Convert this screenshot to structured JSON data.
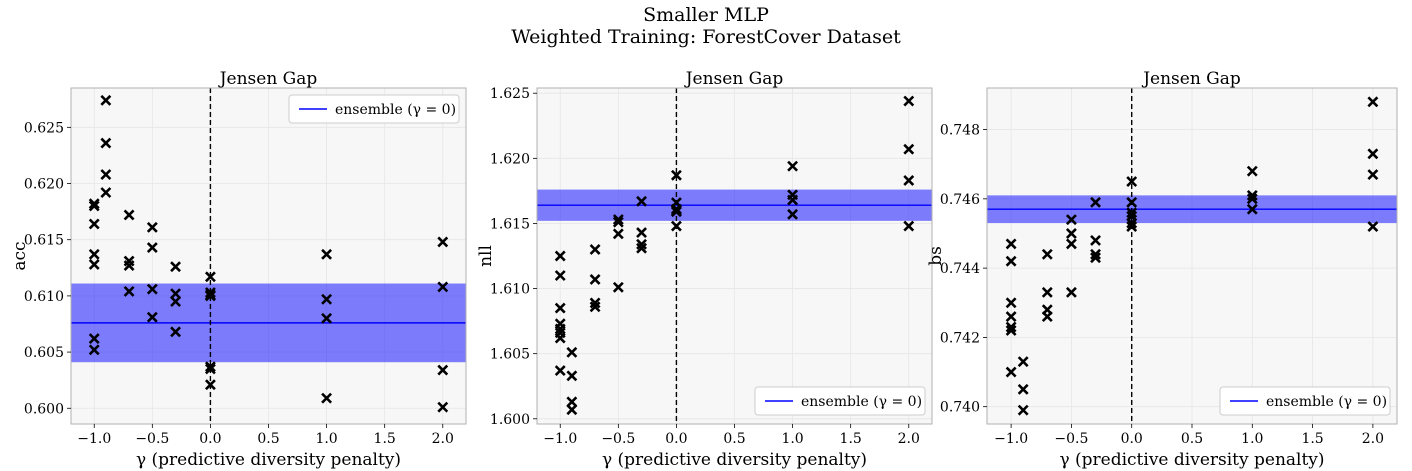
{
  "figure": {
    "title_line1": "Smaller MLP",
    "title_line2": "Weighted Training: ForestCover Dataset"
  },
  "chart_data": [
    {
      "type": "scatter",
      "title": "Jensen Gap",
      "xlabel": "γ (predictive diversity penalty)",
      "ylabel": "acc",
      "xlim": [
        -1.2,
        2.2
      ],
      "ylim": [
        0.5986,
        0.6285
      ],
      "xticks": [
        -1.0,
        -0.5,
        0.0,
        0.5,
        1.0,
        1.5,
        2.0
      ],
      "xtick_labels": [
        "−1.0",
        "−0.5",
        "0.0",
        "0.5",
        "1.0",
        "1.5",
        "2.0"
      ],
      "yticks": [
        0.6,
        0.605,
        0.61,
        0.615,
        0.62,
        0.625
      ],
      "ytick_labels": [
        "0.600",
        "0.605",
        "0.610",
        "0.615",
        "0.620",
        "0.625"
      ],
      "grid": true,
      "legend": {
        "placement": "top-right",
        "label": "ensemble (γ = 0)"
      },
      "ensemble": {
        "mean": 0.6076,
        "band": [
          0.6041,
          0.6111
        ],
        "color": "#0000ff"
      },
      "points": [
        {
          "x": -1.0,
          "y": 0.6182
        },
        {
          "x": -1.0,
          "y": 0.618
        },
        {
          "x": -1.0,
          "y": 0.6164
        },
        {
          "x": -1.0,
          "y": 0.6137
        },
        {
          "x": -1.0,
          "y": 0.6128
        },
        {
          "x": -1.0,
          "y": 0.6062
        },
        {
          "x": -1.0,
          "y": 0.6052
        },
        {
          "x": -0.9,
          "y": 0.6274
        },
        {
          "x": -0.9,
          "y": 0.6236
        },
        {
          "x": -0.9,
          "y": 0.6208
        },
        {
          "x": -0.9,
          "y": 0.6192
        },
        {
          "x": -0.7,
          "y": 0.6172
        },
        {
          "x": -0.7,
          "y": 0.6131
        },
        {
          "x": -0.7,
          "y": 0.6127
        },
        {
          "x": -0.7,
          "y": 0.6104
        },
        {
          "x": -0.5,
          "y": 0.6161
        },
        {
          "x": -0.5,
          "y": 0.6143
        },
        {
          "x": -0.5,
          "y": 0.6106
        },
        {
          "x": -0.5,
          "y": 0.6081
        },
        {
          "x": -0.3,
          "y": 0.6126
        },
        {
          "x": -0.3,
          "y": 0.6102
        },
        {
          "x": -0.3,
          "y": 0.6095
        },
        {
          "x": -0.3,
          "y": 0.6068
        },
        {
          "x": 0.0,
          "y": 0.6117
        },
        {
          "x": 0.0,
          "y": 0.6103
        },
        {
          "x": 0.0,
          "y": 0.6101
        },
        {
          "x": 0.0,
          "y": 0.61
        },
        {
          "x": 0.0,
          "y": 0.6037
        },
        {
          "x": 0.0,
          "y": 0.6035
        },
        {
          "x": 0.0,
          "y": 0.6021
        },
        {
          "x": 1.0,
          "y": 0.6137
        },
        {
          "x": 1.0,
          "y": 0.6097
        },
        {
          "x": 1.0,
          "y": 0.608
        },
        {
          "x": 1.0,
          "y": 0.6009
        },
        {
          "x": 2.0,
          "y": 0.6148
        },
        {
          "x": 2.0,
          "y": 0.6108
        },
        {
          "x": 2.0,
          "y": 0.6034
        },
        {
          "x": 2.0,
          "y": 0.6001
        }
      ]
    },
    {
      "type": "scatter",
      "title": "Jensen Gap",
      "xlabel": "γ (predictive diversity penalty)",
      "ylabel": "nll",
      "xlim": [
        -1.2,
        2.2
      ],
      "ylim": [
        1.5996,
        1.6254
      ],
      "xticks": [
        -1.0,
        -0.5,
        0.0,
        0.5,
        1.0,
        1.5,
        2.0
      ],
      "xtick_labels": [
        "−1.0",
        "−0.5",
        "0.0",
        "0.5",
        "1.0",
        "1.5",
        "2.0"
      ],
      "yticks": [
        1.6,
        1.605,
        1.61,
        1.615,
        1.62,
        1.625
      ],
      "ytick_labels": [
        "1.600",
        "1.605",
        "1.610",
        "1.615",
        "1.620",
        "1.625"
      ],
      "grid": true,
      "legend": {
        "placement": "bottom-right",
        "label": "ensemble (γ = 0)"
      },
      "ensemble": {
        "mean": 1.6164,
        "band": [
          1.6152,
          1.6176
        ],
        "color": "#0000ff"
      },
      "points": [
        {
          "x": -1.0,
          "y": 1.6125
        },
        {
          "x": -1.0,
          "y": 1.611
        },
        {
          "x": -1.0,
          "y": 1.6085
        },
        {
          "x": -1.0,
          "y": 1.6073
        },
        {
          "x": -1.0,
          "y": 1.6069
        },
        {
          "x": -1.0,
          "y": 1.6066
        },
        {
          "x": -1.0,
          "y": 1.6062
        },
        {
          "x": -1.0,
          "y": 1.6037
        },
        {
          "x": -0.9,
          "y": 1.6051
        },
        {
          "x": -0.9,
          "y": 1.6033
        },
        {
          "x": -0.9,
          "y": 1.6013
        },
        {
          "x": -0.9,
          "y": 1.6007
        },
        {
          "x": -0.7,
          "y": 1.613
        },
        {
          "x": -0.7,
          "y": 1.6107
        },
        {
          "x": -0.7,
          "y": 1.6089
        },
        {
          "x": -0.7,
          "y": 1.6086
        },
        {
          "x": -0.5,
          "y": 1.6153
        },
        {
          "x": -0.5,
          "y": 1.6151
        },
        {
          "x": -0.5,
          "y": 1.6142
        },
        {
          "x": -0.5,
          "y": 1.6101
        },
        {
          "x": -0.3,
          "y": 1.6167
        },
        {
          "x": -0.3,
          "y": 1.6143
        },
        {
          "x": -0.3,
          "y": 1.6134
        },
        {
          "x": -0.3,
          "y": 1.6131
        },
        {
          "x": 0.0,
          "y": 1.6187
        },
        {
          "x": 0.0,
          "y": 1.6166
        },
        {
          "x": 0.0,
          "y": 1.6161
        },
        {
          "x": 0.0,
          "y": 1.616
        },
        {
          "x": 0.0,
          "y": 1.6159
        },
        {
          "x": 0.0,
          "y": 1.6148
        },
        {
          "x": 1.0,
          "y": 1.6194
        },
        {
          "x": 1.0,
          "y": 1.6172
        },
        {
          "x": 1.0,
          "y": 1.6168
        },
        {
          "x": 1.0,
          "y": 1.6157
        },
        {
          "x": 2.0,
          "y": 1.6244
        },
        {
          "x": 2.0,
          "y": 1.6207
        },
        {
          "x": 2.0,
          "y": 1.6183
        },
        {
          "x": 2.0,
          "y": 1.6148
        }
      ]
    },
    {
      "type": "scatter",
      "title": "Jensen Gap",
      "xlabel": "γ (predictive diversity penalty)",
      "ylabel": "bs",
      "xlim": [
        -1.2,
        2.2
      ],
      "ylim": [
        0.7395,
        0.7492
      ],
      "xticks": [
        -1.0,
        -0.5,
        0.0,
        0.5,
        1.0,
        1.5,
        2.0
      ],
      "xtick_labels": [
        "−1.0",
        "−0.5",
        "0.0",
        "0.5",
        "1.0",
        "1.5",
        "2.0"
      ],
      "yticks": [
        0.74,
        0.742,
        0.744,
        0.746,
        0.748
      ],
      "ytick_labels": [
        "0.740",
        "0.742",
        "0.744",
        "0.746",
        "0.748"
      ],
      "grid": true,
      "legend": {
        "placement": "bottom-right",
        "label": "ensemble (γ = 0)"
      },
      "ensemble": {
        "mean": 0.7457,
        "band": [
          0.7453,
          0.7461
        ],
        "color": "#0000ff"
      },
      "points": [
        {
          "x": -1.0,
          "y": 0.7447
        },
        {
          "x": -1.0,
          "y": 0.7442
        },
        {
          "x": -1.0,
          "y": 0.743
        },
        {
          "x": -1.0,
          "y": 0.7426
        },
        {
          "x": -1.0,
          "y": 0.7423
        },
        {
          "x": -1.0,
          "y": 0.7422
        },
        {
          "x": -1.0,
          "y": 0.741
        },
        {
          "x": -0.9,
          "y": 0.7413
        },
        {
          "x": -0.9,
          "y": 0.7405
        },
        {
          "x": -0.9,
          "y": 0.7399
        },
        {
          "x": -0.7,
          "y": 0.7444
        },
        {
          "x": -0.7,
          "y": 0.7433
        },
        {
          "x": -0.7,
          "y": 0.7428
        },
        {
          "x": -0.7,
          "y": 0.7426
        },
        {
          "x": -0.5,
          "y": 0.7454
        },
        {
          "x": -0.5,
          "y": 0.745
        },
        {
          "x": -0.5,
          "y": 0.7447
        },
        {
          "x": -0.5,
          "y": 0.7433
        },
        {
          "x": -0.3,
          "y": 0.7459
        },
        {
          "x": -0.3,
          "y": 0.7448
        },
        {
          "x": -0.3,
          "y": 0.7444
        },
        {
          "x": -0.3,
          "y": 0.7443
        },
        {
          "x": 0.0,
          "y": 0.7465
        },
        {
          "x": 0.0,
          "y": 0.7459
        },
        {
          "x": 0.0,
          "y": 0.7456
        },
        {
          "x": 0.0,
          "y": 0.7455
        },
        {
          "x": 0.0,
          "y": 0.7453
        },
        {
          "x": 0.0,
          "y": 0.7452
        },
        {
          "x": 1.0,
          "y": 0.7468
        },
        {
          "x": 1.0,
          "y": 0.7461
        },
        {
          "x": 1.0,
          "y": 0.746
        },
        {
          "x": 1.0,
          "y": 0.7457
        },
        {
          "x": 2.0,
          "y": 0.7488
        },
        {
          "x": 2.0,
          "y": 0.7473
        },
        {
          "x": 2.0,
          "y": 0.7467
        },
        {
          "x": 2.0,
          "y": 0.7452
        }
      ]
    }
  ]
}
